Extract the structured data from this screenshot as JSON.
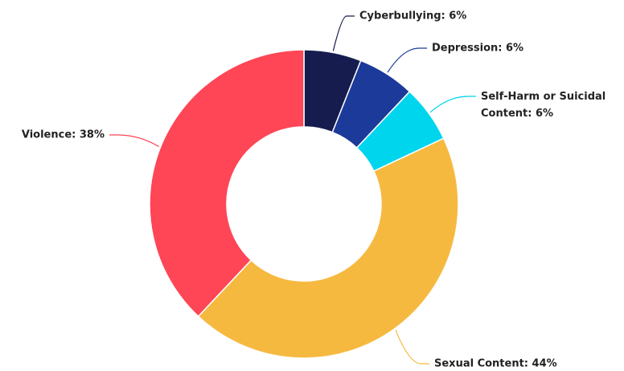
{
  "chart_data": {
    "type": "donut",
    "values": [
      6,
      6,
      6,
      44,
      38
    ],
    "value_labels": [
      "Cyberbullying: 6%",
      "Depression: 6%",
      "Self-Harm or Suicidal Content: 6%",
      "Sexual Content: 44%",
      "Violence: 38%"
    ],
    "colors": [
      "#161c4e",
      "#1b3a99",
      "#00d5ee",
      "#f6b940",
      "#fe4656"
    ]
  }
}
